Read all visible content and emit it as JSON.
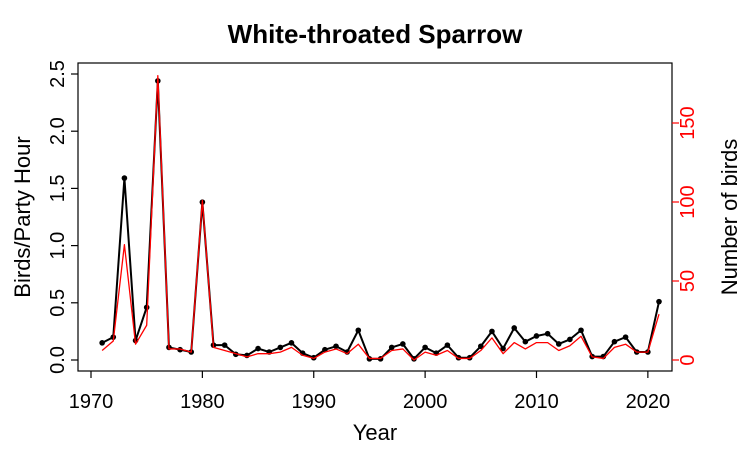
{
  "chart_data": {
    "type": "line",
    "title": "White-throated Sparrow",
    "xlabel": "Year",
    "ylabel_left": "Birds/Party Hour",
    "ylabel_right": "Number of birds",
    "xlim": [
      1970,
      2021
    ],
    "ylim_left": [
      0,
      2.5
    ],
    "ylim_right": [
      0,
      150
    ],
    "x_ticks": [
      1970,
      1980,
      1990,
      2000,
      2010,
      2020
    ],
    "y_ticks_left": [
      0.0,
      0.5,
      1.0,
      1.5,
      2.0,
      2.5
    ],
    "y_tick_labels_left": [
      "0.0",
      "0.5",
      "1.0",
      "1.5",
      "2.0",
      "2.5"
    ],
    "y_ticks_right": [
      0,
      50,
      100,
      150
    ],
    "y_tick_labels_right": [
      "0",
      "50",
      "100",
      "150"
    ],
    "colors": {
      "left_series": "#000000",
      "right_series": "#ff0000",
      "right_axis": "#ff0000"
    },
    "series": [
      {
        "axis": "left",
        "markers": true,
        "x": [
          1971,
          1972,
          1973,
          1974,
          1975,
          1976,
          1977,
          1978,
          1979,
          1980,
          1981,
          1982,
          1983,
          1984,
          1985,
          1986,
          1987,
          1988,
          1989,
          1990,
          1991,
          1992,
          1993,
          1994,
          1995,
          1996,
          1997,
          1998,
          1999,
          2000,
          2001,
          2002,
          2003,
          2004,
          2005,
          2006,
          2007,
          2008,
          2009,
          2010,
          2011,
          2012,
          2013,
          2014,
          2015,
          2016,
          2017,
          2018,
          2019,
          2020,
          2021
        ],
        "values": [
          0.15,
          0.2,
          1.59,
          0.17,
          0.46,
          2.44,
          0.11,
          0.09,
          0.07,
          1.38,
          0.13,
          0.13,
          0.05,
          0.04,
          0.1,
          0.07,
          0.11,
          0.15,
          0.06,
          0.02,
          0.09,
          0.12,
          0.07,
          0.26,
          0.01,
          0.01,
          0.11,
          0.14,
          0.01,
          0.11,
          0.06,
          0.13,
          0.02,
          0.02,
          0.12,
          0.25,
          0.1,
          0.28,
          0.16,
          0.21,
          0.23,
          0.14,
          0.18,
          0.26,
          0.03,
          0.03,
          0.16,
          0.2,
          0.07,
          0.07,
          0.51
        ]
      },
      {
        "axis": "right",
        "markers": false,
        "x": [
          1971,
          1972,
          1973,
          1974,
          1975,
          1976,
          1977,
          1978,
          1979,
          1980,
          1981,
          1982,
          1983,
          1984,
          1985,
          1986,
          1987,
          1988,
          1989,
          1990,
          1991,
          1992,
          1993,
          1994,
          1995,
          1996,
          1997,
          1998,
          1999,
          2000,
          2001,
          2002,
          2003,
          2004,
          2005,
          2006,
          2007,
          2008,
          2009,
          2010,
          2011,
          2012,
          2013,
          2014,
          2015,
          2016,
          2017,
          2018,
          2019,
          2020,
          2021
        ],
        "values": [
          6,
          12,
          73,
          10,
          22,
          180,
          7,
          7,
          5,
          101,
          8,
          6,
          4,
          2,
          4,
          4,
          5,
          8,
          3,
          1,
          5,
          7,
          4,
          10,
          1,
          1,
          6,
          7,
          0,
          5,
          3,
          6,
          1,
          1,
          6,
          14,
          4,
          11,
          7,
          11,
          11,
          6,
          9,
          15,
          2,
          1,
          8,
          10,
          5,
          5,
          29
        ]
      }
    ]
  }
}
